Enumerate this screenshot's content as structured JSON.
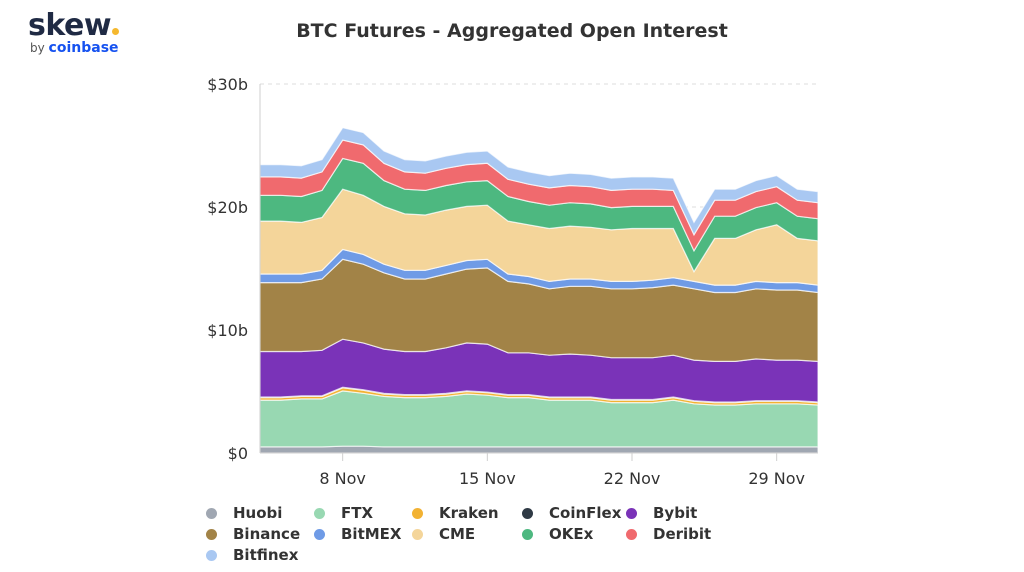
{
  "logo": {
    "name": "skew",
    "by": "by",
    "brand": "coinbase"
  },
  "chart_data": {
    "type": "area",
    "stacked": true,
    "title": "BTC Futures - Aggregated Open Interest",
    "xlabel": "",
    "ylabel": "",
    "ylim": [
      0,
      30
    ],
    "yticks": [
      0,
      10,
      20,
      30
    ],
    "ytick_labels": [
      "$0",
      "$10b",
      "$20b",
      "$30b"
    ],
    "x": [
      "2020-11-04",
      "2020-11-05",
      "2020-11-06",
      "2020-11-07",
      "2020-11-08",
      "2020-11-09",
      "2020-11-10",
      "2020-11-11",
      "2020-11-12",
      "2020-11-13",
      "2020-11-14",
      "2020-11-15",
      "2020-11-16",
      "2020-11-17",
      "2020-11-18",
      "2020-11-19",
      "2020-11-20",
      "2020-11-21",
      "2020-11-22",
      "2020-11-23",
      "2020-11-24",
      "2020-11-25",
      "2020-11-26",
      "2020-11-27",
      "2020-11-28",
      "2020-11-29",
      "2020-11-30",
      "2020-12-01"
    ],
    "xticks": [
      "2020-11-08",
      "2020-11-15",
      "2020-11-22",
      "2020-11-29"
    ],
    "xtick_labels": [
      "8 Nov",
      "15 Nov",
      "22 Nov",
      "29 Nov"
    ],
    "grid": "horizontal-dashed",
    "legend_position": "bottom",
    "series": [
      {
        "name": "Huobi",
        "color": "#a0a7b2",
        "values": [
          0.5,
          0.5,
          0.5,
          0.5,
          0.55,
          0.55,
          0.5,
          0.5,
          0.5,
          0.5,
          0.5,
          0.5,
          0.5,
          0.5,
          0.5,
          0.5,
          0.5,
          0.5,
          0.5,
          0.5,
          0.5,
          0.5,
          0.5,
          0.5,
          0.5,
          0.5,
          0.5,
          0.5
        ]
      },
      {
        "name": "FTX",
        "color": "#98d8b2",
        "values": [
          3.8,
          3.8,
          3.9,
          3.9,
          4.5,
          4.3,
          4.1,
          4.0,
          4.0,
          4.1,
          4.3,
          4.2,
          4.0,
          4.0,
          3.8,
          3.8,
          3.8,
          3.6,
          3.6,
          3.6,
          3.8,
          3.5,
          3.4,
          3.4,
          3.5,
          3.5,
          3.5,
          3.4
        ]
      },
      {
        "name": "Kraken",
        "color": "#f2b233",
        "values": [
          0.2,
          0.2,
          0.2,
          0.2,
          0.25,
          0.25,
          0.2,
          0.2,
          0.2,
          0.2,
          0.2,
          0.2,
          0.2,
          0.2,
          0.2,
          0.2,
          0.2,
          0.2,
          0.2,
          0.2,
          0.2,
          0.2,
          0.2,
          0.2,
          0.2,
          0.2,
          0.2,
          0.2
        ]
      },
      {
        "name": "CoinFlex",
        "color": "#2f3a45",
        "values": [
          0.05,
          0.05,
          0.05,
          0.05,
          0.05,
          0.05,
          0.05,
          0.05,
          0.05,
          0.05,
          0.05,
          0.05,
          0.05,
          0.05,
          0.05,
          0.05,
          0.05,
          0.05,
          0.05,
          0.05,
          0.05,
          0.05,
          0.05,
          0.05,
          0.05,
          0.05,
          0.05,
          0.05
        ]
      },
      {
        "name": "Bybit",
        "color": "#7a33b8",
        "values": [
          3.7,
          3.7,
          3.6,
          3.7,
          3.9,
          3.8,
          3.6,
          3.5,
          3.5,
          3.7,
          3.9,
          3.9,
          3.4,
          3.4,
          3.4,
          3.5,
          3.4,
          3.4,
          3.4,
          3.4,
          3.4,
          3.3,
          3.3,
          3.3,
          3.4,
          3.3,
          3.3,
          3.3
        ]
      },
      {
        "name": "Binance",
        "color": "#a28347",
        "values": [
          5.6,
          5.6,
          5.6,
          5.8,
          6.5,
          6.4,
          6.2,
          5.9,
          5.9,
          6.0,
          6.0,
          6.2,
          5.8,
          5.6,
          5.4,
          5.5,
          5.6,
          5.6,
          5.6,
          5.7,
          5.7,
          5.8,
          5.6,
          5.6,
          5.7,
          5.7,
          5.7,
          5.6
        ]
      },
      {
        "name": "BitMEX",
        "color": "#6f9be6",
        "values": [
          0.7,
          0.7,
          0.7,
          0.7,
          0.8,
          0.8,
          0.7,
          0.7,
          0.7,
          0.7,
          0.7,
          0.7,
          0.6,
          0.6,
          0.6,
          0.6,
          0.6,
          0.6,
          0.6,
          0.6,
          0.6,
          0.6,
          0.6,
          0.6,
          0.6,
          0.6,
          0.6,
          0.6
        ]
      },
      {
        "name": "CME",
        "color": "#f4d59a",
        "values": [
          4.3,
          4.3,
          4.2,
          4.3,
          4.9,
          4.8,
          4.7,
          4.6,
          4.5,
          4.5,
          4.4,
          4.4,
          4.3,
          4.2,
          4.3,
          4.3,
          4.2,
          4.2,
          4.3,
          4.2,
          4.0,
          0.8,
          3.8,
          3.8,
          4.2,
          4.7,
          3.6,
          3.6
        ]
      },
      {
        "name": "OKEx",
        "color": "#4db880",
        "values": [
          2.1,
          2.1,
          2.1,
          2.2,
          2.5,
          2.6,
          2.1,
          2.0,
          2.0,
          2.0,
          2.0,
          2.0,
          2.0,
          1.9,
          1.9,
          1.9,
          1.9,
          1.8,
          1.8,
          1.8,
          1.8,
          1.7,
          1.8,
          1.8,
          1.8,
          1.8,
          1.8,
          1.8
        ]
      },
      {
        "name": "Deribit",
        "color": "#f06a6e",
        "values": [
          1.5,
          1.5,
          1.5,
          1.5,
          1.5,
          1.5,
          1.4,
          1.4,
          1.4,
          1.4,
          1.4,
          1.4,
          1.4,
          1.4,
          1.4,
          1.4,
          1.4,
          1.4,
          1.4,
          1.4,
          1.3,
          1.3,
          1.3,
          1.3,
          1.3,
          1.3,
          1.3,
          1.3
        ]
      },
      {
        "name": "Bitfinex",
        "color": "#a9c8f2",
        "values": [
          1.0,
          1.0,
          1.0,
          1.0,
          1.0,
          1.0,
          1.0,
          1.0,
          1.0,
          1.0,
          1.0,
          1.0,
          1.0,
          1.0,
          1.0,
          1.0,
          1.0,
          1.0,
          1.0,
          1.0,
          1.0,
          1.0,
          0.9,
          0.9,
          0.9,
          0.9,
          0.9,
          0.9
        ]
      }
    ]
  }
}
